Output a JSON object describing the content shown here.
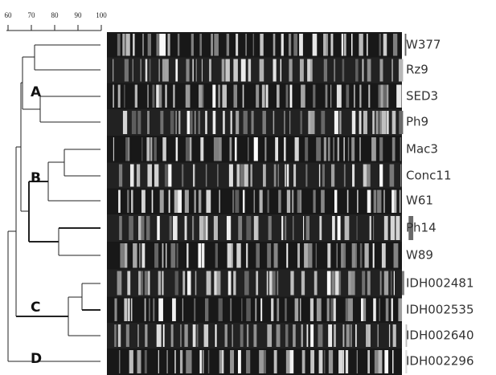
{
  "scale": {
    "ticks": [
      60,
      70,
      80,
      90,
      100
    ]
  },
  "clusters": [
    "A",
    "B",
    "C",
    "D"
  ],
  "strains": [
    "W377",
    "Rz9",
    "SED3",
    "Ph9",
    "Mac3",
    "Conc11",
    "W61",
    "Ph14",
    "W89",
    "IDH002481",
    "IDH002535",
    "IDH002640",
    "IDH002296"
  ]
}
